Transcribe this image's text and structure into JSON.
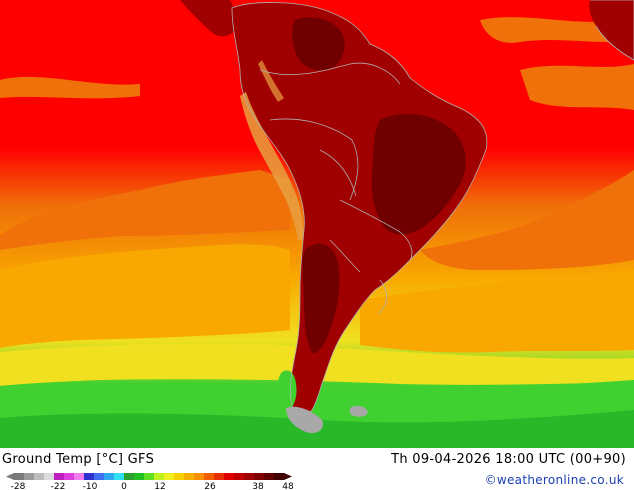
{
  "title": "Ground Temp [°C] GFS",
  "timestamp": "Th 09-04-2026 18:00 UTC (00+90)",
  "credit": "©weatheronline.co.uk",
  "legend": {
    "ticks": [
      "-28",
      "-22",
      "-10",
      "0",
      "12",
      "26",
      "38",
      "48"
    ],
    "colors": [
      "#7a7a7a",
      "#9a9a9a",
      "#bdbdbd",
      "#dcdcdc",
      "#c020c0",
      "#e040e0",
      "#f07cf0",
      "#3030d0",
      "#3f6ff0",
      "#30a8f0",
      "#30e0f0",
      "#2ea02e",
      "#22c022",
      "#60e020",
      "#c0f020",
      "#f0f020",
      "#f8d000",
      "#f8b000",
      "#f89000",
      "#f06000",
      "#e83000",
      "#e00000",
      "#c00000",
      "#a00000",
      "#800000",
      "#600000",
      "#400000"
    ]
  },
  "map_colors": {
    "ocean_hot": "#ff0000",
    "ocean_warm": "#f0700a",
    "ocean_mild": "#f8a800",
    "ocean_cool": "#f0e020",
    "ocean_cold": "#40d030",
    "ocean_colder": "#28b828",
    "land_hot": "#a00000",
    "land_hotter": "#700000",
    "mountains": "#e8a040",
    "borders": "#b0b0b0",
    "ice": "#a8a8a8"
  }
}
